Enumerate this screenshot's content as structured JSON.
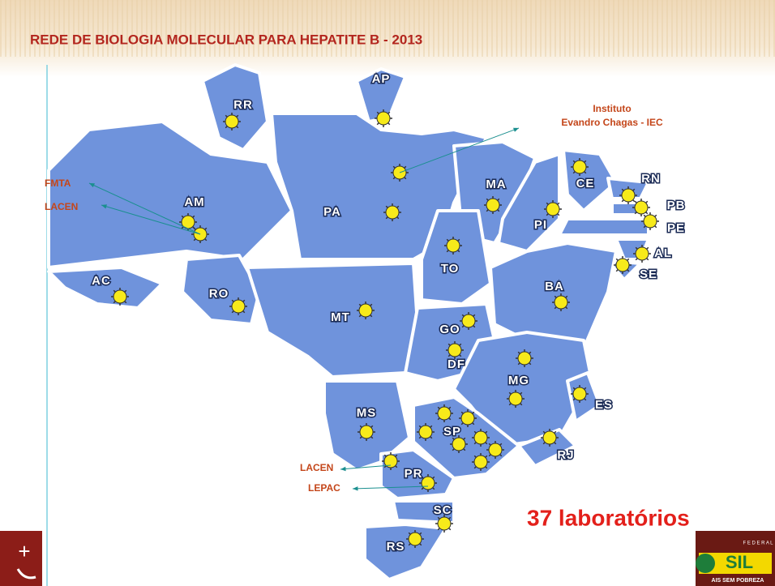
{
  "title": "REDE DE BIOLOGIA MOLECULAR PARA HEPATITE  B -  2013",
  "states": [
    {
      "label": "RR"
    },
    {
      "label": "AP"
    },
    {
      "label": "PA"
    },
    {
      "label": "AM"
    },
    {
      "label": "AC"
    },
    {
      "label": "RO"
    },
    {
      "label": "MT"
    },
    {
      "label": "MA"
    },
    {
      "label": "PI"
    },
    {
      "label": "CE"
    },
    {
      "label": "RN"
    },
    {
      "label": "PB"
    },
    {
      "label": "PE"
    },
    {
      "label": "AL"
    },
    {
      "label": "SE"
    },
    {
      "label": "BA"
    },
    {
      "label": "TO"
    },
    {
      "label": "GO"
    },
    {
      "label": "DF"
    },
    {
      "label": "MG"
    },
    {
      "label": "ES"
    },
    {
      "label": "MS"
    },
    {
      "label": "SP"
    },
    {
      "label": "RJ"
    },
    {
      "label": "PR"
    },
    {
      "label": "SC"
    },
    {
      "label": "RS"
    }
  ],
  "annotations": [
    {
      "lines": [
        "Instituto",
        "Evandro Chagas - IEC"
      ]
    },
    {
      "lines": [
        "FMTA"
      ]
    },
    {
      "lines": [
        "LACEN"
      ]
    },
    {
      "lines": [
        "LACEN"
      ]
    },
    {
      "lines": [
        "LEPAC"
      ]
    }
  ],
  "count": "37 laboratórios",
  "footer": {
    "top": "F E D E R A L",
    "logo": "SIL",
    "bottom": "AIS SEM POBREZA"
  }
}
